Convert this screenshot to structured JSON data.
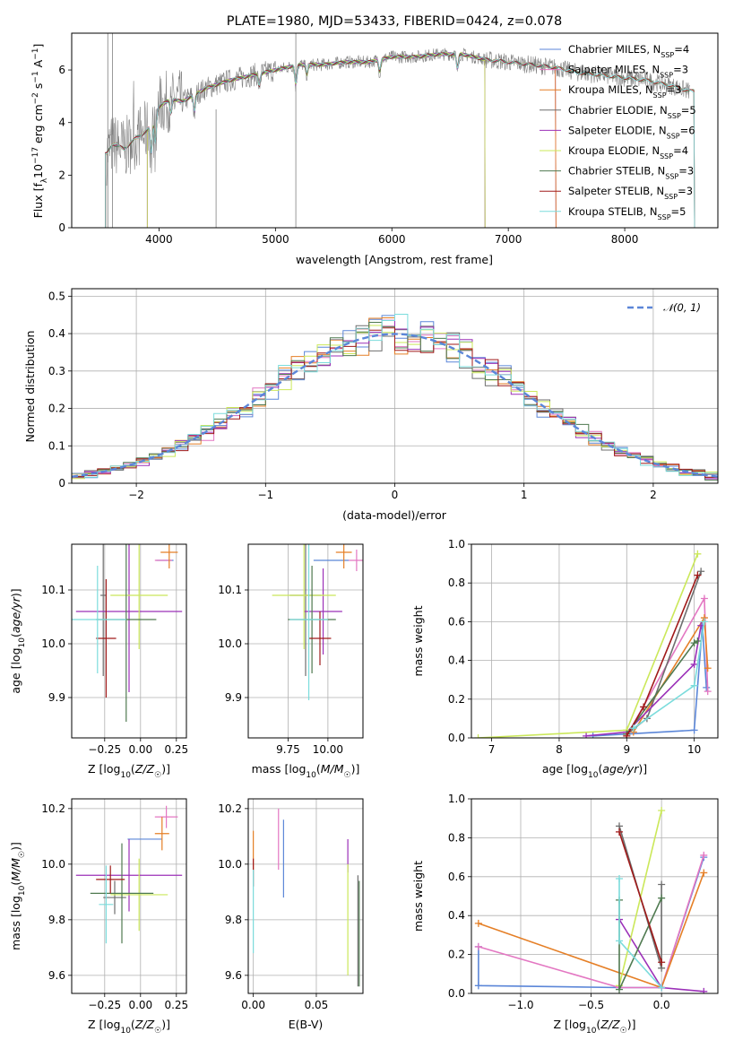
{
  "colors": {
    "Chabrier MILES": "#5b86d8",
    "Salpeter MILES": "#e377c2",
    "Kroupa MILES": "#e57f26",
    "Chabrier ELODIE": "#6e6e6e",
    "Salpeter ELODIE": "#9b30b8",
    "Kroupa ELODIE": "#cbe85a",
    "Chabrier STELIB": "#4f7a50",
    "Salpeter STELIB": "#a01a1a",
    "Kroupa STELIB": "#7bdcdc",
    "normal": "#5b86d8",
    "data": "#808080",
    "grid": "#b0b0b0"
  },
  "chart_data": [
    {
      "id": "spectrum",
      "type": "line",
      "title": "PLATE=1980, MJD=53433, FIBERID=0424, z=0.078",
      "xlabel": "wavelength [Angstrom, rest frame]",
      "ylabel": "Flux [fλ10⁻¹⁷ erg cm⁻² s⁻¹ A⁻¹]",
      "xlim": [
        3250,
        8800
      ],
      "ylim": [
        0,
        7.4
      ],
      "xticks": [
        "4000",
        "5000",
        "6000",
        "7000",
        "8000"
      ],
      "yticks": [
        "0",
        "2",
        "4",
        "6"
      ],
      "grid": false,
      "legend_position": "right",
      "legend": [
        {
          "name": "Chabrier MILES",
          "nssp": "4"
        },
        {
          "name": "Salpeter MILES",
          "nssp": "3"
        },
        {
          "name": "Kroupa MILES",
          "nssp": "3"
        },
        {
          "name": "Chabrier ELODIE",
          "nssp": "5"
        },
        {
          "name": "Salpeter ELODIE",
          "nssp": "6"
        },
        {
          "name": "Kroupa ELODIE",
          "nssp": "4"
        },
        {
          "name": "Chabrier STELIB",
          "nssp": "3"
        },
        {
          "name": "Salpeter STELIB",
          "nssp": "3"
        },
        {
          "name": "Kroupa STELIB",
          "nssp": "5"
        }
      ],
      "continuum": {
        "x": [
          3550,
          3600,
          3700,
          3800,
          3900,
          4000,
          4100,
          4200,
          4400,
          4600,
          4800,
          5000,
          5200,
          5400,
          5600,
          5800,
          6000,
          6200,
          6400,
          6600,
          6800,
          7000,
          7200,
          7400,
          7600,
          7800,
          8000,
          8200,
          8400,
          8550
        ],
        "y": [
          2.8,
          3.2,
          3.0,
          3.4,
          3.7,
          4.6,
          4.9,
          4.8,
          5.3,
          5.6,
          5.8,
          6.0,
          6.2,
          6.2,
          6.3,
          6.3,
          6.5,
          6.5,
          6.6,
          6.6,
          6.4,
          6.3,
          6.2,
          6.1,
          5.9,
          5.8,
          5.7,
          5.6,
          5.4,
          5.2
        ]
      },
      "model_ranges": {
        "Chabrier MILES": [
          3540,
          7410
        ],
        "Salpeter MILES": [
          3540,
          7410
        ],
        "Kroupa MILES": [
          3540,
          7410
        ],
        "Chabrier ELODIE": [
          3900,
          6800
        ],
        "Salpeter ELODIE": [
          3900,
          6800
        ],
        "Kroupa ELODIE": [
          3900,
          6800
        ],
        "Chabrier STELIB": [
          3540,
          8600
        ],
        "Salpeter STELIB": [
          3540,
          8600
        ],
        "Kroupa STELIB": [
          3540,
          8600
        ]
      }
    },
    {
      "id": "residuals",
      "type": "line",
      "xlabel": "(data-model)/error",
      "ylabel": "Normed distribution",
      "xlim": [
        -2.5,
        2.5
      ],
      "ylim": [
        0,
        0.52
      ],
      "xticks": [
        -2,
        -1,
        0,
        1,
        2
      ],
      "yticks": [
        0,
        0.1,
        0.2,
        0.3,
        0.4,
        0.5
      ],
      "grid": true,
      "legend_position": "top-right",
      "legend": [
        "𝒩(0, 1)"
      ],
      "bin_width": 0.1
    },
    {
      "id": "age-vs-Z",
      "type": "scatter",
      "xlabel": "Z [log10(Z/Z☉)]",
      "ylabel": "age  [log10(age/yr)]",
      "xlim": [
        -0.48,
        0.32
      ],
      "ylim": [
        9.825,
        10.185
      ],
      "xticks": [
        "−0.25",
        "0.00",
        "0.25"
      ],
      "yticks": [
        "9.9",
        "10.0",
        "10.1"
      ],
      "grid": true,
      "points": [
        {
          "model": "Chabrier MILES",
          "x": 0.17,
          "xerr": 0.06,
          "y": 10.155,
          "yerr": 0.0
        },
        {
          "model": "Salpeter MILES",
          "x": 0.16,
          "xerr": 0.06,
          "y": 10.155,
          "yerr": 0.0
        },
        {
          "model": "Kroupa MILES",
          "x": 0.2,
          "xerr": 0.06,
          "y": 10.17,
          "yerr": 0.03
        },
        {
          "model": "Chabrier ELODIE",
          "x": -0.26,
          "xerr": 0.02,
          "y": 10.09,
          "yerr": 0.15
        },
        {
          "model": "Salpeter ELODIE",
          "x": -0.08,
          "xerr": 0.37,
          "y": 10.06,
          "yerr": 0.15
        },
        {
          "model": "Kroupa ELODIE",
          "x": -0.01,
          "xerr": 0.2,
          "y": 10.09,
          "yerr": 0.1
        },
        {
          "model": "Chabrier STELIB",
          "x": -0.1,
          "xerr": 0.21,
          "y": 10.045,
          "yerr": 0.19
        },
        {
          "model": "Salpeter STELIB",
          "x": -0.24,
          "xerr": 0.07,
          "y": 10.01,
          "yerr": 0.11
        },
        {
          "model": "Kroupa STELIB",
          "x": -0.3,
          "xerr": 0.2,
          "y": 10.045,
          "yerr": 0.1
        }
      ]
    },
    {
      "id": "age-vs-mass",
      "type": "scatter",
      "xlabel": "mass [log10(M/M☉)]",
      "ylabel": "",
      "xlim": [
        9.5,
        10.22
      ],
      "ylim": [
        9.825,
        10.185
      ],
      "xticks": [
        "9.75",
        "10.00"
      ],
      "yticks": [
        "9.9",
        "10.0",
        "10.1"
      ],
      "grid": true,
      "points": [
        {
          "model": "Chabrier MILES",
          "x": 10.02,
          "xerr": 0.11,
          "y": 10.155,
          "yerr": 0.0
        },
        {
          "model": "Salpeter MILES",
          "x": 10.18,
          "xerr": 0.05,
          "y": 10.155,
          "yerr": 0.02
        },
        {
          "model": "Kroupa MILES",
          "x": 10.1,
          "xerr": 0.05,
          "y": 10.17,
          "yerr": 0.03
        },
        {
          "model": "Chabrier ELODIE",
          "x": 9.86,
          "xerr": 0.1,
          "y": 10.09,
          "yerr": 0.15
        },
        {
          "model": "Salpeter ELODIE",
          "x": 9.97,
          "xerr": 0.12,
          "y": 10.06,
          "yerr": 0.08
        },
        {
          "model": "Kroupa ELODIE",
          "x": 9.85,
          "xerr": 0.2,
          "y": 10.09,
          "yerr": 0.1
        },
        {
          "model": "Chabrier STELIB",
          "x": 9.9,
          "xerr": 0.15,
          "y": 10.045,
          "yerr": 0.1
        },
        {
          "model": "Salpeter STELIB",
          "x": 9.95,
          "xerr": 0.07,
          "y": 10.01,
          "yerr": 0.05
        },
        {
          "model": "Kroupa STELIB",
          "x": 9.88,
          "xerr": 0.12,
          "y": 10.045,
          "yerr": 0.15
        }
      ]
    },
    {
      "id": "mass-weight-vs-age",
      "type": "line",
      "xlabel": "age  [log10(age/yr)]",
      "ylabel": "mass weight",
      "xlim": [
        6.7,
        10.35
      ],
      "ylim": [
        0,
        1.0
      ],
      "xticks": [
        "7",
        "8",
        "9",
        "10"
      ],
      "yticks": [
        "0.0",
        "0.2",
        "0.4",
        "0.6",
        "0.8",
        "1.0"
      ],
      "grid": true,
      "series": [
        {
          "model": "Chabrier MILES",
          "points": [
            [
              8.5,
              0.01
            ],
            [
              9.0,
              0.02
            ],
            [
              10.0,
              0.04
            ],
            [
              10.12,
              0.58
            ],
            [
              10.18,
              0.26
            ]
          ]
        },
        {
          "model": "Salpeter MILES",
          "points": [
            [
              9.0,
              0.01
            ],
            [
              10.15,
              0.72
            ],
            [
              10.2,
              0.24
            ]
          ]
        },
        {
          "model": "Kroupa MILES",
          "points": [
            [
              9.1,
              0.03
            ],
            [
              10.15,
              0.62
            ],
            [
              10.2,
              0.36
            ]
          ]
        },
        {
          "model": "Chabrier ELODIE",
          "points": [
            [
              9.0,
              0.02
            ],
            [
              9.3,
              0.1
            ],
            [
              10.1,
              0.86
            ]
          ]
        },
        {
          "model": "Salpeter ELODIE",
          "points": [
            [
              8.4,
              0.01
            ],
            [
              9.0,
              0.03
            ],
            [
              10.0,
              0.38
            ],
            [
              10.1,
              0.58
            ]
          ]
        },
        {
          "model": "Kroupa ELODIE",
          "points": [
            [
              6.8,
              0.0
            ],
            [
              9.0,
              0.04
            ],
            [
              10.05,
              0.95
            ]
          ]
        },
        {
          "model": "Chabrier STELIB",
          "points": [
            [
              9.0,
              0.02
            ],
            [
              10.0,
              0.49
            ],
            [
              10.05,
              0.5
            ]
          ]
        },
        {
          "model": "Salpeter STELIB",
          "points": [
            [
              9.0,
              0.01
            ],
            [
              9.25,
              0.16
            ],
            [
              10.05,
              0.84
            ]
          ]
        },
        {
          "model": "Kroupa STELIB",
          "points": [
            [
              9.1,
              0.05
            ],
            [
              10.0,
              0.27
            ],
            [
              10.15,
              0.6
            ]
          ]
        }
      ]
    },
    {
      "id": "mass-vs-Z",
      "type": "scatter",
      "xlabel": "Z [log10(Z/Z☉)]",
      "ylabel": "mass [log10(M/M☉)]",
      "xlim": [
        -0.48,
        0.32
      ],
      "ylim": [
        9.535,
        10.235
      ],
      "xticks": [
        "−0.25",
        "0.00",
        "0.25"
      ],
      "yticks": [
        "9.6",
        "9.8",
        "10.0",
        "10.2"
      ],
      "grid": true,
      "points": [
        {
          "model": "Chabrier MILES",
          "x": 0.03,
          "xerr": 0.12,
          "y": 10.09,
          "yerr": 0.0
        },
        {
          "model": "Salpeter MILES",
          "x": 0.18,
          "xerr": 0.08,
          "y": 10.17,
          "yerr": 0.04
        },
        {
          "model": "Kroupa MILES",
          "x": 0.15,
          "xerr": 0.05,
          "y": 10.11,
          "yerr": 0.06
        },
        {
          "model": "Chabrier ELODIE",
          "x": -0.18,
          "xerr": 0.08,
          "y": 9.88,
          "yerr": 0.06
        },
        {
          "model": "Salpeter ELODIE",
          "x": -0.08,
          "xerr": 0.37,
          "y": 9.96,
          "yerr": 0.13
        },
        {
          "model": "Kroupa ELODIE",
          "x": -0.01,
          "xerr": 0.2,
          "y": 9.89,
          "yerr": 0.13
        },
        {
          "model": "Chabrier STELIB",
          "x": -0.13,
          "xerr": 0.22,
          "y": 9.895,
          "yerr": 0.18
        },
        {
          "model": "Salpeter STELIB",
          "x": -0.21,
          "xerr": 0.1,
          "y": 9.945,
          "yerr": 0.05
        },
        {
          "model": "Kroupa STELIB",
          "x": -0.24,
          "xerr": 0.05,
          "y": 9.855,
          "yerr": 0.14
        }
      ]
    },
    {
      "id": "mass-vs-EBV",
      "type": "scatter",
      "xlabel": "E(B-V)",
      "ylabel": "",
      "xlim": [
        -0.004,
        0.087
      ],
      "ylim": [
        9.535,
        10.235
      ],
      "xticks": [
        "0.00",
        "0.05"
      ],
      "yticks": [
        "9.6",
        "9.8",
        "10.0",
        "10.2"
      ],
      "grid": true,
      "points": [
        {
          "model": "Chabrier MILES",
          "x": 0.024,
          "xerr": 0,
          "y": 10.02,
          "yerr": 0.14
        },
        {
          "model": "Salpeter MILES",
          "x": 0.02,
          "xerr": 0,
          "y": 10.09,
          "yerr": 0.11
        },
        {
          "model": "Kroupa MILES",
          "x": 0.0,
          "xerr": 0,
          "y": 10.05,
          "yerr": 0.07
        },
        {
          "model": "Chabrier ELODIE",
          "x": 0.083,
          "xerr": 0,
          "y": 9.76,
          "yerr": 0.2
        },
        {
          "model": "Salpeter ELODIE",
          "x": 0.075,
          "xerr": 0,
          "y": 10.03,
          "yerr": 0.06
        },
        {
          "model": "Kroupa ELODIE",
          "x": 0.075,
          "xerr": 0,
          "y": 9.8,
          "yerr": 0.2
        },
        {
          "model": "Chabrier STELIB",
          "x": 0.084,
          "xerr": 0,
          "y": 9.75,
          "yerr": 0.19
        },
        {
          "model": "Salpeter STELIB",
          "x": 0.0,
          "xerr": 0,
          "y": 9.97,
          "yerr": 0.05
        },
        {
          "model": "Kroupa STELIB",
          "x": 0.0,
          "xerr": 0,
          "y": 9.83,
          "yerr": 0.15
        }
      ]
    },
    {
      "id": "mass-weight-vs-Z",
      "type": "line",
      "xlabel": "Z [log10(Z/Z☉)]",
      "ylabel": "mass weight",
      "xlim": [
        -1.35,
        0.4
      ],
      "ylim": [
        0,
        1.0
      ],
      "xticks": [
        "−1.0",
        "−0.5",
        "0.0"
      ],
      "yticks": [
        "0.0",
        "0.2",
        "0.4",
        "0.6",
        "0.8",
        "1.0"
      ],
      "grid": true,
      "series": [
        {
          "model": "Chabrier MILES",
          "points": [
            [
              -1.3,
              0.24
            ],
            [
              -1.3,
              0.04
            ],
            [
              -0.3,
              0.03
            ],
            [
              0.0,
              0.03
            ],
            [
              0.3,
              0.7
            ]
          ]
        },
        {
          "model": "Salpeter MILES",
          "points": [
            [
              -1.3,
              0.24
            ],
            [
              -0.3,
              0.03
            ],
            [
              0.0,
              0.03
            ],
            [
              0.3,
              0.71
            ]
          ]
        },
        {
          "model": "Kroupa MILES",
          "points": [
            [
              -1.3,
              0.36
            ],
            [
              0.0,
              0.03
            ],
            [
              0.3,
              0.62
            ]
          ]
        },
        {
          "model": "Chabrier ELODIE",
          "points": [
            [
              -0.3,
              0.86
            ],
            [
              0.0,
              0.13
            ],
            [
              0.0,
              0.56
            ]
          ]
        },
        {
          "model": "Salpeter ELODIE",
          "points": [
            [
              -0.3,
              0.38
            ],
            [
              0.0,
              0.03
            ],
            [
              0.3,
              0.01
            ]
          ]
        },
        {
          "model": "Kroupa ELODIE",
          "points": [
            [
              -0.3,
              0.04
            ],
            [
              0.0,
              0.94
            ]
          ]
        },
        {
          "model": "Chabrier STELIB",
          "points": [
            [
              -0.3,
              0.48
            ],
            [
              -0.3,
              0.02
            ],
            [
              0.0,
              0.49
            ]
          ]
        },
        {
          "model": "Salpeter STELIB",
          "points": [
            [
              -0.3,
              0.83
            ],
            [
              0.0,
              0.16
            ]
          ]
        },
        {
          "model": "Kroupa STELIB",
          "points": [
            [
              -0.3,
              0.59
            ],
            [
              -0.3,
              0.27
            ],
            [
              0.0,
              0.03
            ]
          ]
        }
      ]
    }
  ]
}
